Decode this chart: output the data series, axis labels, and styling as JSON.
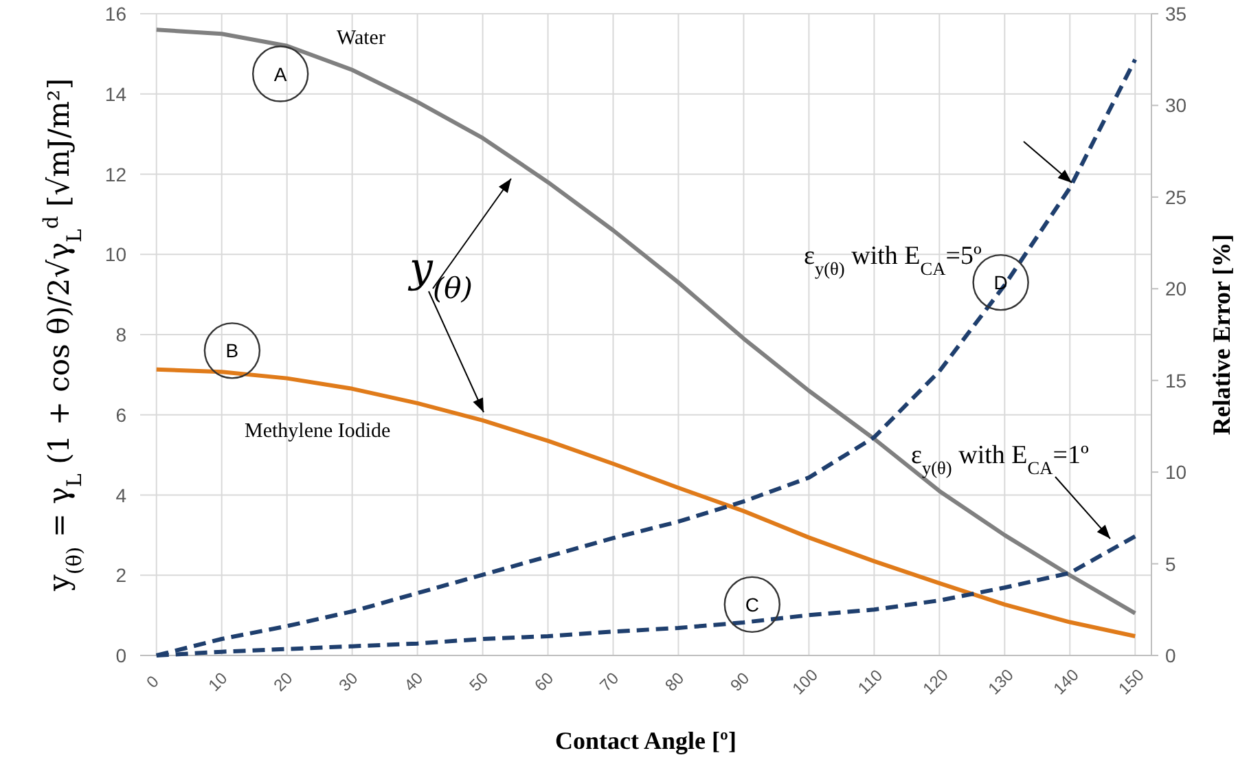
{
  "chart_data": {
    "type": "line",
    "xlabel": "Contact Angle [º]",
    "ylabel": "y$_{(θ)}$ = γ$_{L}$ (1 + cos θ)/2√γ$_{L}$$^{d}$   [√mJ/m²]",
    "y2label": "Relative Error [%]",
    "x": [
      0,
      10,
      20,
      30,
      40,
      50,
      60,
      70,
      80,
      90,
      100,
      110,
      120,
      130,
      140,
      150
    ],
    "xlim": [
      -2.5,
      152.5
    ],
    "xticks": [
      0,
      10,
      20,
      30,
      40,
      50,
      60,
      70,
      80,
      90,
      100,
      110,
      120,
      130,
      140,
      150
    ],
    "ylim": [
      0,
      16
    ],
    "yticks": [
      0,
      2,
      4,
      6,
      8,
      10,
      12,
      14,
      16
    ],
    "y2lim": [
      0,
      35
    ],
    "y2ticks": [
      0,
      5,
      10,
      15,
      20,
      25,
      30,
      35
    ],
    "grid": true,
    "marker": "none",
    "series": [
      {
        "name": "Water",
        "color": "#808080",
        "line_style": "solid",
        "values": [
          15.6,
          15.5,
          15.2,
          14.6,
          13.8,
          12.9,
          11.8,
          10.6,
          9.3,
          7.9,
          6.6,
          5.4,
          4.1,
          3.0,
          2.0,
          1.05
        ]
      },
      {
        "name": "Methylene Iodide",
        "color": "#e07b1a",
        "line_style": "solid",
        "values": [
          7.13,
          7.07,
          6.91,
          6.65,
          6.29,
          5.86,
          5.35,
          4.78,
          4.18,
          3.6,
          2.94,
          2.35,
          1.8,
          1.27,
          0.83,
          0.48
        ]
      },
      {
        "name": "ε$_{y(θ)}$ with E$_{CA}$=5º",
        "color": "#1f3f6e",
        "line_style": "dashed",
        "axis": "y2",
        "values": [
          0,
          0.9,
          1.6,
          2.4,
          3.4,
          4.4,
          5.4,
          6.4,
          7.3,
          8.4,
          9.7,
          11.9,
          15.5,
          20.2,
          25.5,
          32.5
        ]
      },
      {
        "name": "ε$_{y(θ)}$ with E$_{CA}$=1º",
        "color": "#1f3f6e",
        "line_style": "dashed",
        "axis": "y2",
        "values": [
          0,
          0.2,
          0.35,
          0.5,
          0.65,
          0.9,
          1.05,
          1.3,
          1.5,
          1.8,
          2.2,
          2.5,
          3.0,
          3.7,
          4.5,
          6.5
        ]
      }
    ],
    "annotations": [
      {
        "text": "A",
        "x": 19,
        "y": 14.5
      },
      {
        "text": "B",
        "x": 11.6,
        "y": 7.6
      },
      {
        "text": "C",
        "x": 91.3,
        "y": 1.27
      },
      {
        "text": "D",
        "x": 129.4,
        "y": 9.3
      },
      "y$_{(θ)}$"
    ]
  }
}
